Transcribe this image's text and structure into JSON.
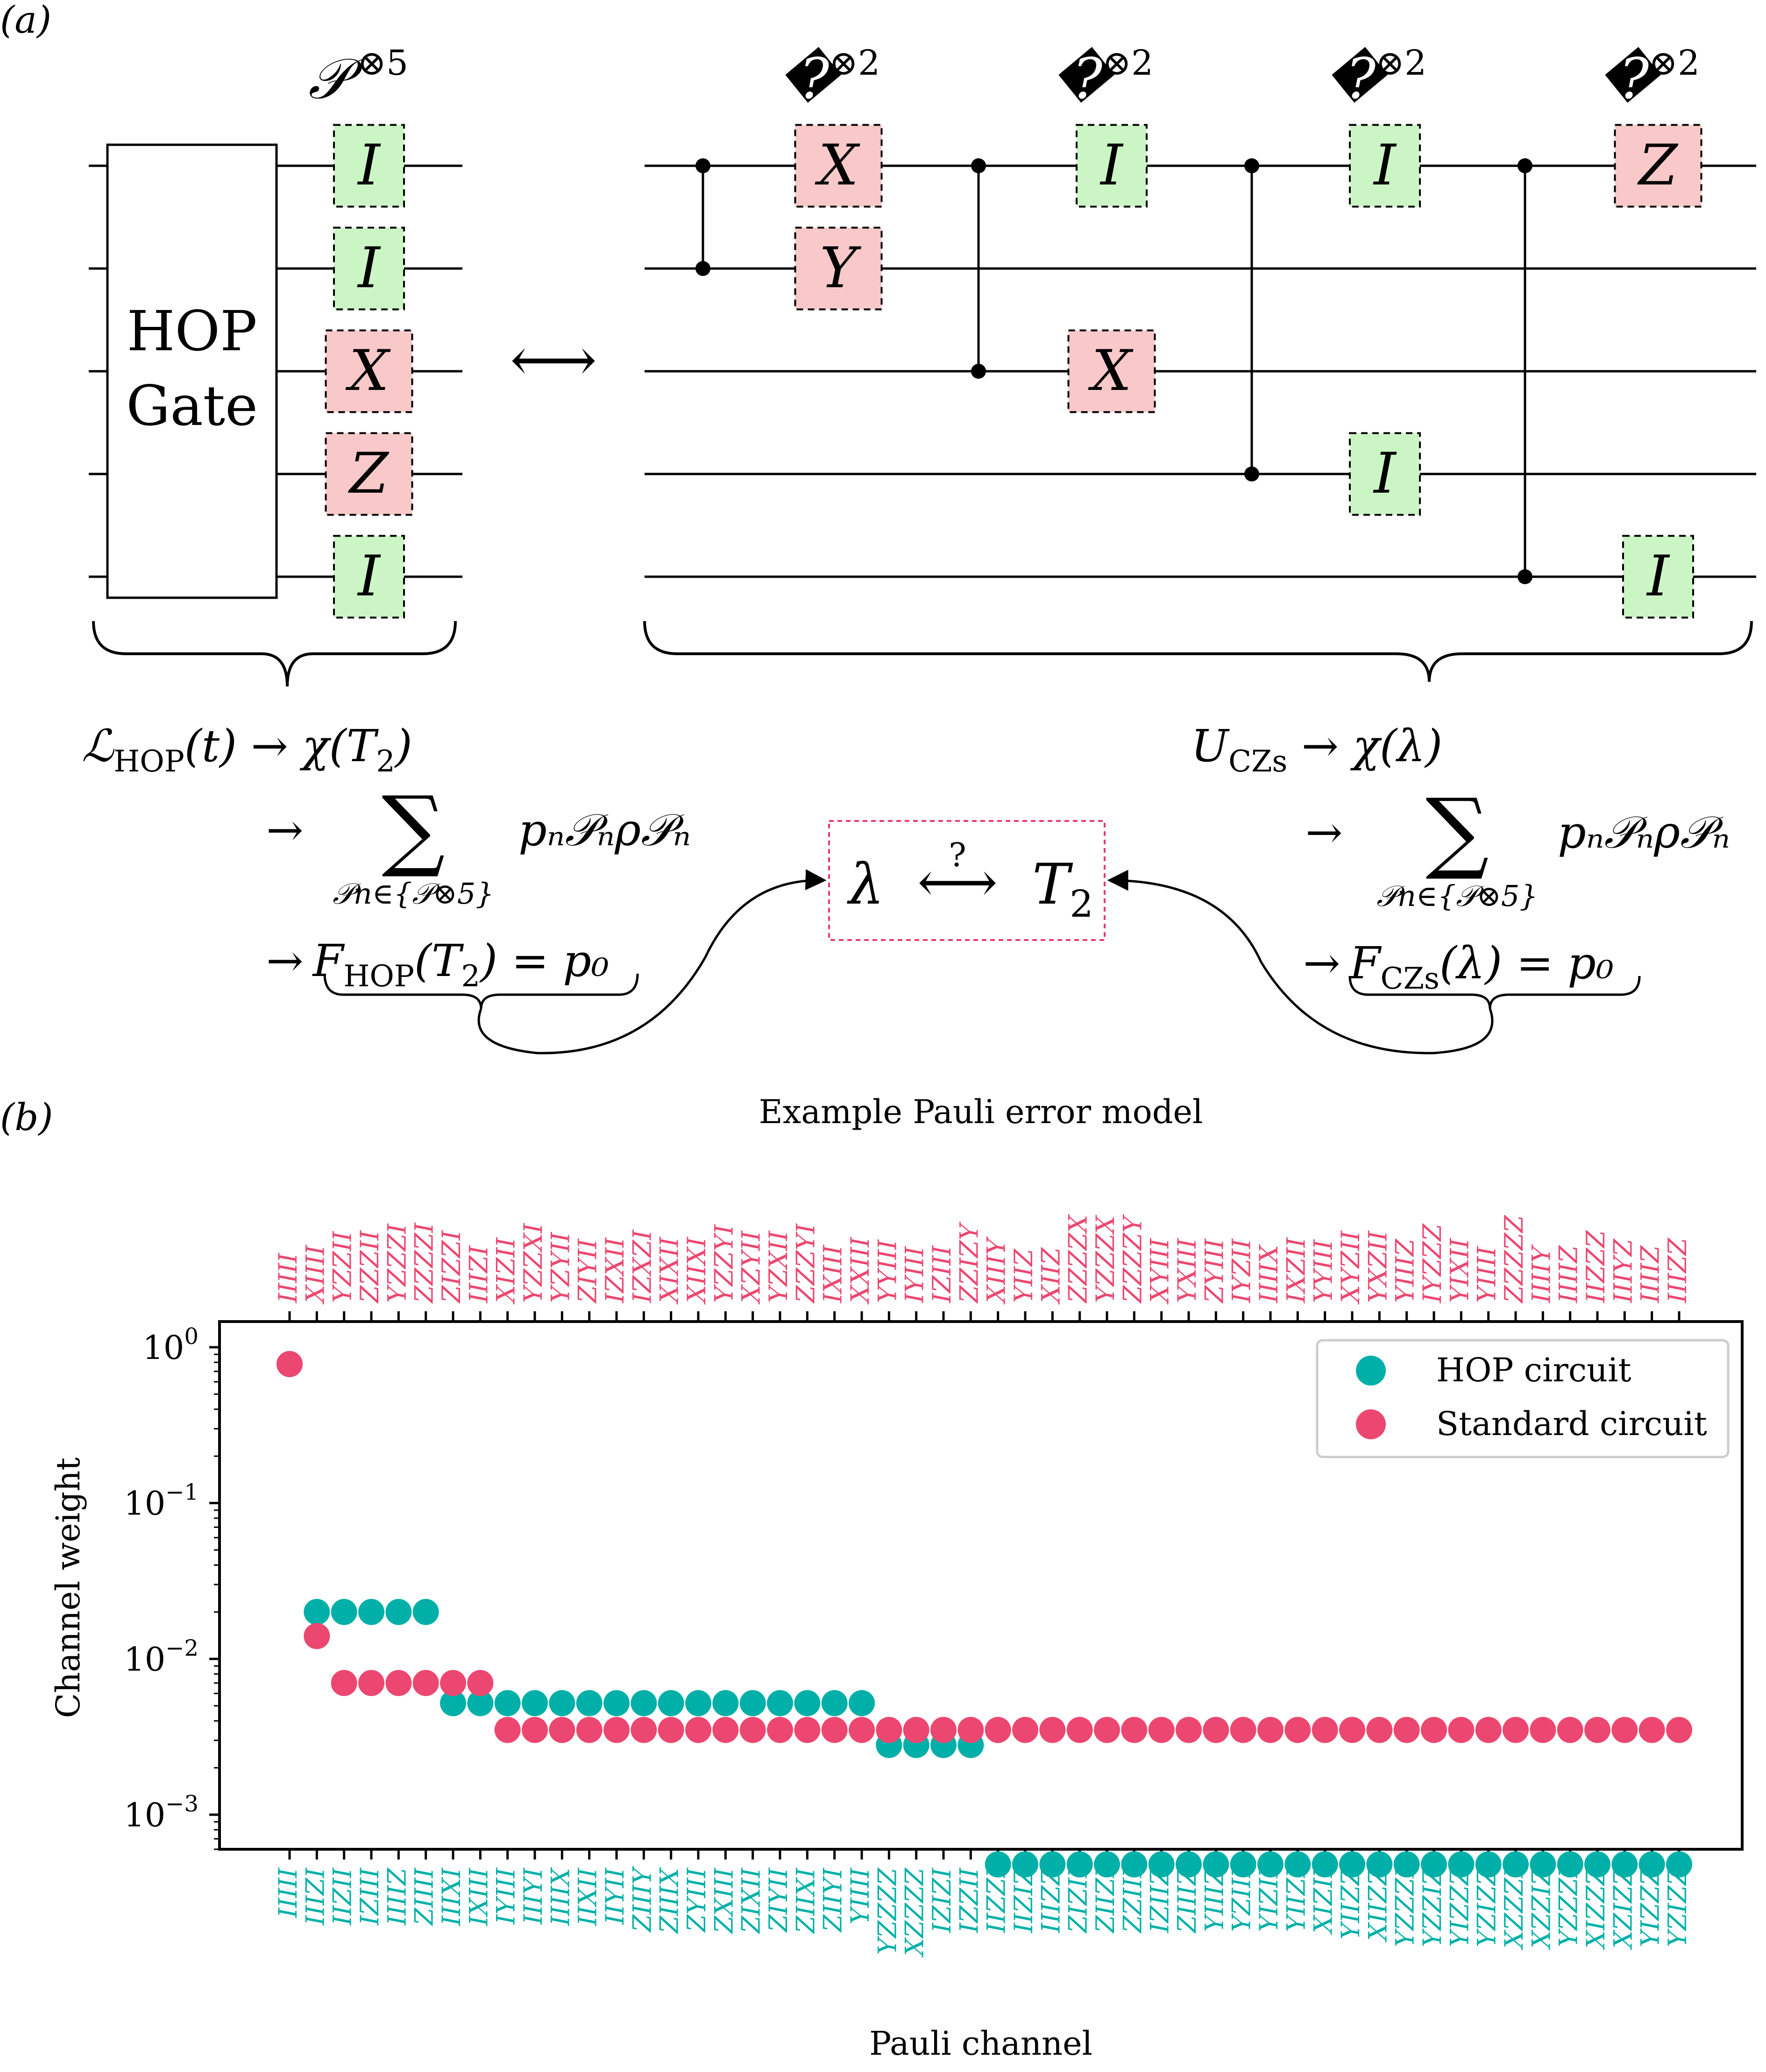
{
  "panel_a": {
    "label": "(a)",
    "hop_gate": {
      "line1": "HOP",
      "line2": "Gate"
    },
    "tensor_p5": "𝒫⊗5",
    "tensor_p2": "𝒫⊗2",
    "equiv_arrow": "⟷",
    "left_column_gates": [
      "I",
      "I",
      "X",
      "Z",
      "I"
    ],
    "right_gate_groups": [
      {
        "wires": [
          0,
          1
        ],
        "gates": [
          "X",
          "Y"
        ],
        "targets": [
          0,
          1
        ]
      },
      {
        "wires": [
          0,
          2
        ],
        "gates": [
          "I",
          "X"
        ],
        "targets": [
          0,
          2
        ]
      },
      {
        "wires": [
          0,
          3
        ],
        "gates": [
          "I",
          "I"
        ],
        "targets": [
          0,
          3
        ]
      },
      {
        "wires": [
          0,
          4
        ],
        "gates": [
          "Z",
          "I"
        ],
        "targets": [
          0,
          4
        ]
      }
    ],
    "gate_colors": {
      "identity": "#ccf5c6",
      "error": "#f9c9c9"
    },
    "left_equations": {
      "eq1_lhs": "ℒ",
      "eq1_sub": "HOP",
      "eq1_rest": "(t) → χ(T",
      "eq1_sub2": "2",
      "eq1_end": ")",
      "arrow": "→",
      "sum": "∑",
      "sum_sub": "𝒫n∈{𝒫⊗5}",
      "sum_term": "pₙ𝒫ₙρ𝒫ₙ",
      "eq3_F": "F",
      "eq3_sub": "HOP",
      "eq3_rest": "(T",
      "eq3_sub2": "2",
      "eq3_end": ") = p₀"
    },
    "right_equations": {
      "eq1_U": "U",
      "eq1_sub": "CZs",
      "eq1_rest": " → χ(λ)",
      "arrow": "→",
      "sum": "∑",
      "sum_sub": "𝒫n∈{𝒫⊗5}",
      "sum_term": "pₙ𝒫ₙρ𝒫ₙ",
      "eq3_F": "F",
      "eq3_sub": "CZs",
      "eq3_rest": "(λ) = p₀"
    },
    "center_box": {
      "lambda": "λ",
      "question": "?",
      "arrow": "⟷",
      "T": "T",
      "T_sub": "2"
    }
  },
  "panel_b": {
    "label": "(b)",
    "chart_data": {
      "type": "scatter",
      "title": "Example Pauli error model",
      "xlabel": "Pauli channel",
      "ylabel": "Channel weight",
      "yscale": "log",
      "ylim": [
        0.0006,
        1.0
      ],
      "yticks": [
        1,
        0.1,
        0.01,
        0.001
      ],
      "ytick_labels": [
        {
          "base": "10",
          "exp": "0"
        },
        {
          "base": "10",
          "exp": "−1"
        },
        {
          "base": "10",
          "exp": "−2"
        },
        {
          "base": "10",
          "exp": "−3"
        }
      ],
      "grid": false,
      "legend_position": "top-right",
      "n_points": 52,
      "top_tick_labels": [
        "IIIII",
        "XIIII",
        "YZZII",
        "ZZZII",
        "YZZZI",
        "ZZZZI",
        "ZIZZI",
        "IIIZI",
        "XIZII",
        "YZZXI",
        "YZYII",
        "ZIYII",
        "IZXII",
        "IZXZI",
        "XIXII",
        "XIIXI",
        "YZZYI",
        "XZYII",
        "YZXII",
        "ZZZYI",
        "IXIII",
        "XXIII",
        "YYIII",
        "IYIII",
        "IZIII",
        "ZZIZY",
        "XIIIY",
        "YIIZ",
        "XIIZ",
        "ZZZZX",
        "YZZZX",
        "ZZZZY",
        "XYIII",
        "YXIII",
        "ZYIII",
        "IYZII",
        "IIIIX",
        "IXZII",
        "YYIII",
        "XYZII",
        "YXZII",
        "YIIIZ",
        "IYZZZ",
        "YIXII",
        "YIIII",
        "ZZZZZ",
        "IIIIY",
        "IIIIZ",
        "IIZZZ",
        "IIIYZ",
        "IIIIZ",
        "IIIZZ"
      ],
      "bottom_tick_labels": [
        "IIIII",
        "IIIZI",
        "IIZII",
        "IZIII",
        "IIIIZ",
        "ZIIII",
        "IIIXI",
        "IXIII",
        "IYIII",
        "IIIYI",
        "IIIIX",
        "IIXII",
        "IIYII",
        "ZIIIY",
        "ZIIIX",
        "ZYIII",
        "ZXIII",
        "ZIXII",
        "ZIYII",
        "ZIIXI",
        "ZIIYI",
        "YIIII",
        "YZZZZ",
        "XZZZZ",
        "IZIZI",
        "IZZII",
        "IIZZI",
        "IIZIZ",
        "IIIZZ",
        "ZIZII",
        "ZIIZI",
        "ZZIII",
        "IZIIZ",
        "ZIIIZ",
        "YIIIZ",
        "YZIII",
        "YIZII",
        "YIIZI",
        "XIZII",
        "YIIZZ",
        "XIIZZ",
        "YZZZI",
        "YZZIZ",
        "YIZZZ",
        "YZIZZ",
        "XZZZI",
        "XZZIZ",
        "YZZZI",
        "XIZZZ",
        "XZIZZ",
        "YIZZZ",
        "YZIZZ"
      ],
      "series": [
        {
          "name": "HOP circuit",
          "color": "#00b0a8",
          "values": [
            0.78,
            0.02,
            0.02,
            0.02,
            0.02,
            0.02,
            0.0052,
            0.0052,
            0.0052,
            0.0052,
            0.0052,
            0.0052,
            0.0052,
            0.0052,
            0.0052,
            0.0052,
            0.0052,
            0.0052,
            0.0052,
            0.0052,
            0.0052,
            0.0052,
            0.0028,
            0.0028,
            0.0028,
            0.0028,
            0.00048,
            0.00048,
            0.00048,
            0.00048,
            0.00048,
            0.00048,
            0.00048,
            0.00048,
            0.00048,
            0.00048,
            0.00048,
            0.00048,
            0.00048,
            0.00048,
            0.00048,
            0.00048,
            0.00048,
            0.00048,
            0.00048,
            0.00048,
            0.00048,
            0.00048,
            0.00048,
            0.00048,
            0.00048,
            0.00048
          ]
        },
        {
          "name": "Standard circuit",
          "color": "#ec4770",
          "values": [
            0.78,
            0.014,
            0.007,
            0.007,
            0.007,
            0.007,
            0.007,
            0.007,
            0.0035,
            0.0035,
            0.0035,
            0.0035,
            0.0035,
            0.0035,
            0.0035,
            0.0035,
            0.0035,
            0.0035,
            0.0035,
            0.0035,
            0.0035,
            0.0035,
            0.0035,
            0.0035,
            0.0035,
            0.0035,
            0.0035,
            0.0035,
            0.0035,
            0.0035,
            0.0035,
            0.0035,
            0.0035,
            0.0035,
            0.0035,
            0.0035,
            0.0035,
            0.0035,
            0.0035,
            0.0035,
            0.0035,
            0.0035,
            0.0035,
            0.0035,
            0.0035,
            0.0035,
            0.0035,
            0.0035,
            0.0035,
            0.0035,
            0.0035,
            0.0035
          ]
        }
      ]
    }
  }
}
